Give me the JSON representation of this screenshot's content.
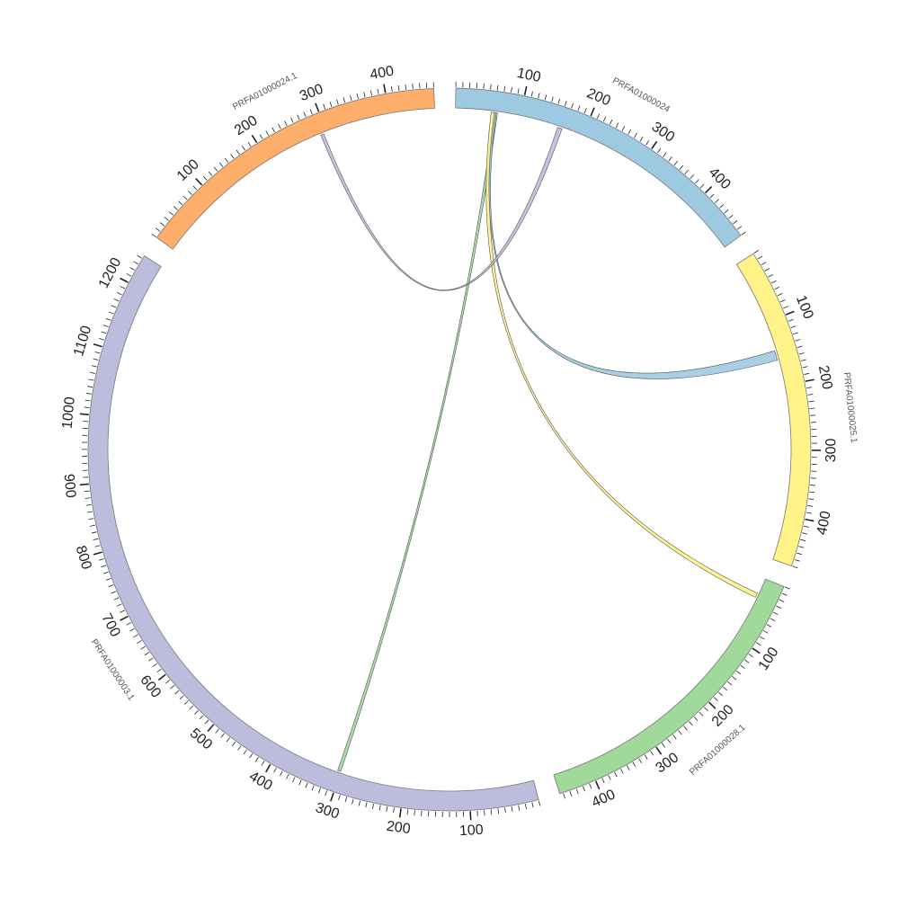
{
  "diagram": {
    "type": "chord",
    "segments": [
      {
        "id": "s24",
        "label": "PRFA01000024",
        "length": 480,
        "color": "#9ecae1",
        "tick_labels": [
          "100",
          "200",
          "300",
          "400"
        ]
      },
      {
        "id": "s25",
        "label": "PRFA01000025.1",
        "length": 470,
        "color": "#fff38a",
        "tick_labels": [
          "100",
          "200",
          "300",
          "400"
        ]
      },
      {
        "id": "s28",
        "label": "PRFA01000028.1",
        "length": 455,
        "color": "#a1d99b",
        "tick_labels": [
          "100",
          "200",
          "300",
          "400"
        ]
      },
      {
        "id": "s3",
        "label": "PRFA01000003.1",
        "length": 1245,
        "color": "#bcbddc",
        "tick_labels": [
          "100",
          "200",
          "300",
          "400",
          "500",
          "600",
          "700",
          "800",
          "900",
          "1000",
          "1100",
          "1200"
        ]
      },
      {
        "id": "s241",
        "label": "PRFA01000024.1",
        "length": 470,
        "color": "#fdae6b",
        "tick_labels": [
          "100",
          "200",
          "300",
          "400"
        ]
      }
    ],
    "links": [
      {
        "from": [
          "s24",
          60,
          65
        ],
        "to": [
          "s3",
          300,
          305
        ],
        "color": "#a1d99b"
      },
      {
        "from": [
          "s24",
          55,
          62
        ],
        "to": [
          "s28",
          25,
          32
        ],
        "color": "#fff38a"
      },
      {
        "from": [
          "s24",
          60,
          63
        ],
        "to": [
          "s25",
          145,
          160
        ],
        "color": "#9ecae1"
      },
      {
        "from": [
          "s241",
          290,
          295
        ],
        "to": [
          "s24",
          160,
          167
        ],
        "color": "#bcbddc"
      }
    ]
  }
}
